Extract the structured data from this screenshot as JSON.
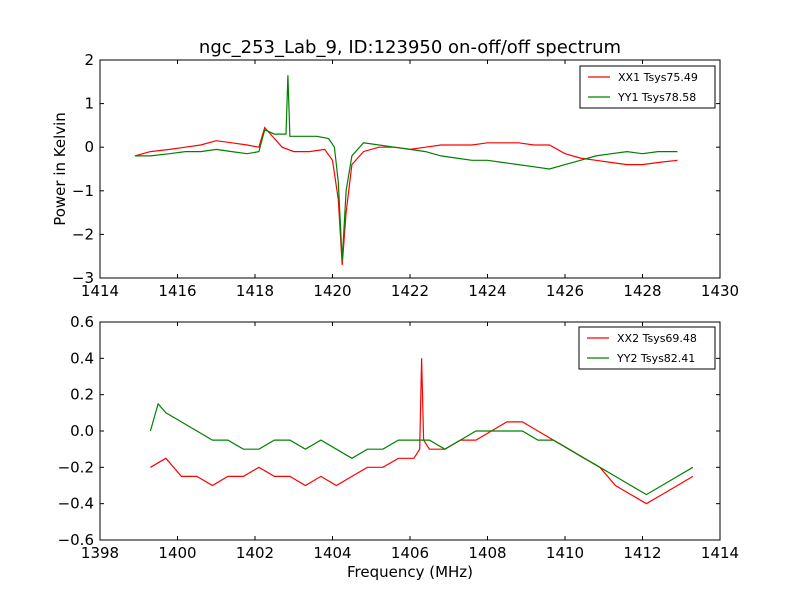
{
  "figure_title": "ngc_253_Lab_9, ID:123950 on-off/off spectrum",
  "chart_data": [
    {
      "type": "line",
      "ylabel": "Power in Kelvin",
      "xlabel": "",
      "xlim": [
        1414,
        1430
      ],
      "ylim": [
        -3,
        2
      ],
      "xticks": [
        1414,
        1416,
        1418,
        1420,
        1422,
        1424,
        1426,
        1428,
        1430
      ],
      "yticks": [
        -3,
        -2,
        -1,
        0,
        1,
        2
      ],
      "legend_position": "top-right",
      "series": [
        {
          "name": "XX1 Tsys75.49",
          "color": "#ff0000",
          "x": [
            1414.9,
            1415.3,
            1415.8,
            1416.2,
            1416.6,
            1417.0,
            1417.4,
            1417.8,
            1418.1,
            1418.25,
            1418.4,
            1418.7,
            1419.0,
            1419.4,
            1419.8,
            1420.0,
            1420.15,
            1420.25,
            1420.35,
            1420.5,
            1420.8,
            1421.2,
            1421.6,
            1422.0,
            1422.4,
            1422.8,
            1423.2,
            1423.6,
            1424.0,
            1424.4,
            1424.8,
            1425.2,
            1425.6,
            1426.0,
            1426.4,
            1426.8,
            1427.2,
            1427.6,
            1428.0,
            1428.4,
            1428.9
          ],
          "y": [
            -0.2,
            -0.1,
            -0.05,
            0.0,
            0.05,
            0.15,
            0.1,
            0.05,
            0.0,
            0.45,
            0.3,
            0.0,
            -0.1,
            -0.1,
            -0.05,
            -0.3,
            -1.2,
            -2.7,
            -1.5,
            -0.4,
            -0.1,
            0.0,
            0.0,
            -0.05,
            0.0,
            0.05,
            0.05,
            0.05,
            0.1,
            0.1,
            0.1,
            0.05,
            0.05,
            -0.15,
            -0.25,
            -0.3,
            -0.35,
            -0.4,
            -0.4,
            -0.35,
            -0.3
          ]
        },
        {
          "name": "YY1 Tsys78.58",
          "color": "#008000",
          "x": [
            1414.9,
            1415.3,
            1415.8,
            1416.2,
            1416.6,
            1417.0,
            1417.4,
            1417.8,
            1418.1,
            1418.25,
            1418.5,
            1418.8,
            1418.85,
            1418.9,
            1419.2,
            1419.6,
            1419.9,
            1420.05,
            1420.15,
            1420.25,
            1420.35,
            1420.5,
            1420.8,
            1421.2,
            1421.6,
            1422.0,
            1422.4,
            1422.8,
            1423.2,
            1423.6,
            1424.0,
            1424.4,
            1424.8,
            1425.2,
            1425.6,
            1426.0,
            1426.4,
            1426.8,
            1427.2,
            1427.6,
            1428.0,
            1428.4,
            1428.9
          ],
          "y": [
            -0.2,
            -0.2,
            -0.15,
            -0.1,
            -0.1,
            -0.05,
            -0.1,
            -0.15,
            -0.1,
            0.4,
            0.3,
            0.3,
            1.65,
            0.25,
            0.25,
            0.25,
            0.2,
            0.0,
            -0.8,
            -2.6,
            -1.0,
            -0.2,
            0.1,
            0.05,
            0.0,
            -0.05,
            -0.1,
            -0.2,
            -0.25,
            -0.3,
            -0.3,
            -0.35,
            -0.4,
            -0.45,
            -0.5,
            -0.4,
            -0.3,
            -0.2,
            -0.15,
            -0.1,
            -0.15,
            -0.1,
            -0.1
          ]
        }
      ]
    },
    {
      "type": "line",
      "ylabel": "",
      "xlabel": "Frequency (MHz)",
      "xlim": [
        1398,
        1414
      ],
      "ylim": [
        -0.6,
        0.6
      ],
      "xticks": [
        1398,
        1400,
        1402,
        1404,
        1406,
        1408,
        1410,
        1412,
        1414
      ],
      "yticks": [
        -0.6,
        -0.4,
        -0.2,
        0.0,
        0.2,
        0.4,
        0.6
      ],
      "legend_position": "top-right",
      "series": [
        {
          "name": "XX2 Tsys69.48",
          "color": "#ff0000",
          "x": [
            1399.3,
            1399.7,
            1400.1,
            1400.5,
            1400.9,
            1401.3,
            1401.7,
            1402.1,
            1402.5,
            1402.9,
            1403.3,
            1403.7,
            1404.1,
            1404.5,
            1404.9,
            1405.3,
            1405.7,
            1406.1,
            1406.25,
            1406.3,
            1406.35,
            1406.5,
            1406.9,
            1407.3,
            1407.7,
            1408.1,
            1408.5,
            1408.9,
            1409.3,
            1409.7,
            1410.1,
            1410.5,
            1410.9,
            1411.3,
            1411.7,
            1412.1,
            1412.5,
            1412.9,
            1413.3
          ],
          "y": [
            -0.2,
            -0.15,
            -0.25,
            -0.25,
            -0.3,
            -0.25,
            -0.25,
            -0.2,
            -0.25,
            -0.25,
            -0.3,
            -0.25,
            -0.3,
            -0.25,
            -0.2,
            -0.2,
            -0.15,
            -0.15,
            -0.1,
            0.4,
            -0.05,
            -0.1,
            -0.1,
            -0.05,
            -0.05,
            0.0,
            0.05,
            0.05,
            0.0,
            -0.05,
            -0.1,
            -0.15,
            -0.2,
            -0.3,
            -0.35,
            -0.4,
            -0.35,
            -0.3,
            -0.25
          ]
        },
        {
          "name": "YY2 Tsys82.41",
          "color": "#008000",
          "x": [
            1399.3,
            1399.5,
            1399.7,
            1400.1,
            1400.5,
            1400.9,
            1401.3,
            1401.7,
            1402.1,
            1402.5,
            1402.9,
            1403.3,
            1403.7,
            1404.1,
            1404.5,
            1404.9,
            1405.3,
            1405.7,
            1406.1,
            1406.5,
            1406.9,
            1407.3,
            1407.7,
            1408.1,
            1408.5,
            1408.9,
            1409.3,
            1409.7,
            1410.1,
            1410.5,
            1410.9,
            1411.3,
            1411.7,
            1412.1,
            1412.5,
            1412.9,
            1413.3
          ],
          "y": [
            0.0,
            0.15,
            0.1,
            0.05,
            0.0,
            -0.05,
            -0.05,
            -0.1,
            -0.1,
            -0.05,
            -0.05,
            -0.1,
            -0.05,
            -0.1,
            -0.15,
            -0.1,
            -0.1,
            -0.05,
            -0.05,
            -0.05,
            -0.1,
            -0.05,
            0.0,
            0.0,
            0.0,
            0.0,
            -0.05,
            -0.05,
            -0.1,
            -0.15,
            -0.2,
            -0.25,
            -0.3,
            -0.35,
            -0.3,
            -0.25,
            -0.2
          ]
        }
      ]
    }
  ]
}
